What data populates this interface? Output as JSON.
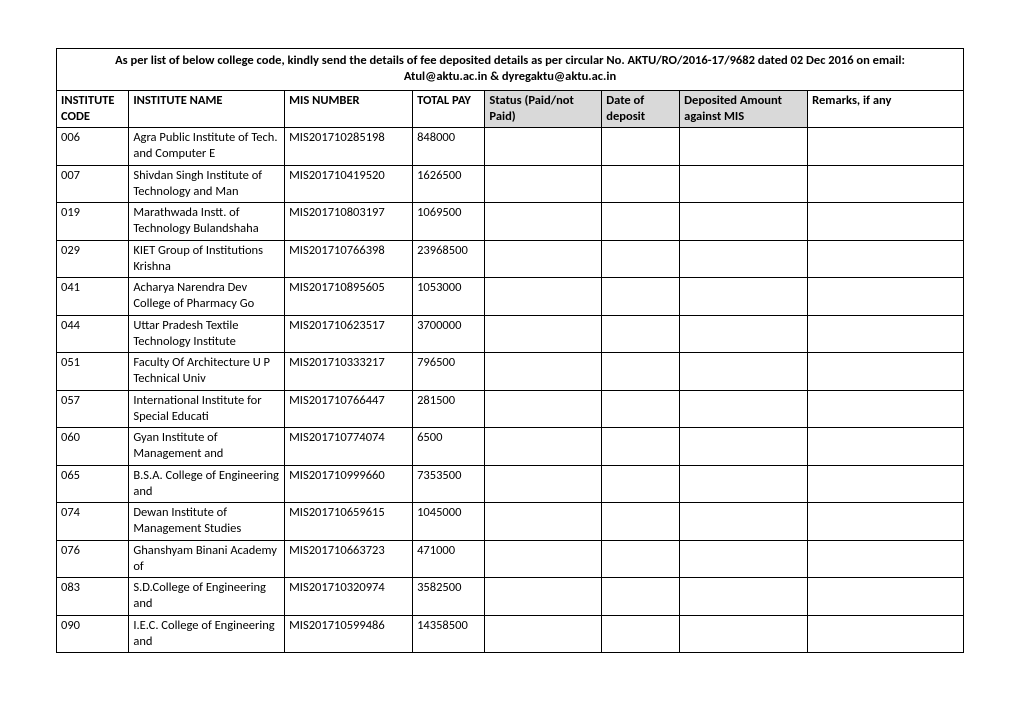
{
  "header_line1": "As per list of  below college code, kindly send the details of fee deposited details as per circular No. AKTU/RO/2016-17/9682 dated 02 Dec 2016 on email:",
  "header_line2": "Atul@aktu.ac.in & dyregaktu@aktu.ac.in",
  "columns": {
    "c0": "INSTITUTE CODE",
    "c1": "INSTITUTE NAME",
    "c2": "MIS NUMBER",
    "c3": "TOTAL PAY",
    "c4": "Status (Paid/not Paid)",
    "c5": "Date of deposit",
    "c6": "Deposited Amount against MIS",
    "c7": "Remarks, if any"
  },
  "rows": [
    {
      "code": "006",
      "name": "Agra Public Institute of Tech.  and Computer E",
      "mis": "MIS201710285198",
      "total": "848000",
      "status": "",
      "date": "",
      "amount": "",
      "remarks": ""
    },
    {
      "code": "007",
      "name": "Shivdan Singh Institute of Technology  and Man",
      "mis": "MIS201710419520",
      "total": "1626500",
      "status": "",
      "date": "",
      "amount": "",
      "remarks": ""
    },
    {
      "code": "019",
      "name": "Marathwada Instt. of Technology Bulandshaha",
      "mis": "MIS201710803197",
      "total": "1069500",
      "status": "",
      "date": "",
      "amount": "",
      "remarks": ""
    },
    {
      "code": "029",
      "name": "KIET Group of Institutions Krishna",
      "mis": "MIS201710766398",
      "total": "23968500",
      "status": "",
      "date": "",
      "amount": "",
      "remarks": ""
    },
    {
      "code": "041",
      "name": "Acharya Narendra Dev College of Pharmacy Go",
      "mis": "MIS201710895605",
      "total": "1053000",
      "status": "",
      "date": "",
      "amount": "",
      "remarks": ""
    },
    {
      "code": "044",
      "name": "Uttar Pradesh Textile Technology Institute",
      "mis": "MIS201710623517",
      "total": "3700000",
      "status": "",
      "date": "",
      "amount": "",
      "remarks": ""
    },
    {
      "code": "051",
      "name": "Faculty Of Architecture U P Technical Univ",
      "mis": "MIS201710333217",
      "total": "796500",
      "status": "",
      "date": "",
      "amount": "",
      "remarks": ""
    },
    {
      "code": "057",
      "name": "International Institute for Special Educati",
      "mis": "MIS201710766447",
      "total": "281500",
      "status": "",
      "date": "",
      "amount": "",
      "remarks": ""
    },
    {
      "code": "060",
      "name": "Gyan Institute of Management  and",
      "mis": "MIS201710774074",
      "total": "6500",
      "status": "",
      "date": "",
      "amount": "",
      "remarks": ""
    },
    {
      "code": "065",
      "name": "B.S.A. College of Engineering  and",
      "mis": "MIS201710999660",
      "total": "7353500",
      "status": "",
      "date": "",
      "amount": "",
      "remarks": ""
    },
    {
      "code": "074",
      "name": "Dewan Institute of Management Studies",
      "mis": "MIS201710659615",
      "total": "1045000",
      "status": "",
      "date": "",
      "amount": "",
      "remarks": ""
    },
    {
      "code": "076",
      "name": "Ghanshyam Binani Academy of",
      "mis": "MIS201710663723",
      "total": "471000",
      "status": "",
      "date": "",
      "amount": "",
      "remarks": ""
    },
    {
      "code": "083",
      "name": "S.D.College of Engineering  and",
      "mis": "MIS201710320974",
      "total": "3582500",
      "status": "",
      "date": "",
      "amount": "",
      "remarks": ""
    },
    {
      "code": "090",
      "name": "I.E.C. College of Engineering  and",
      "mis": "MIS201710599486",
      "total": "14358500",
      "status": "",
      "date": "",
      "amount": "",
      "remarks": ""
    }
  ]
}
